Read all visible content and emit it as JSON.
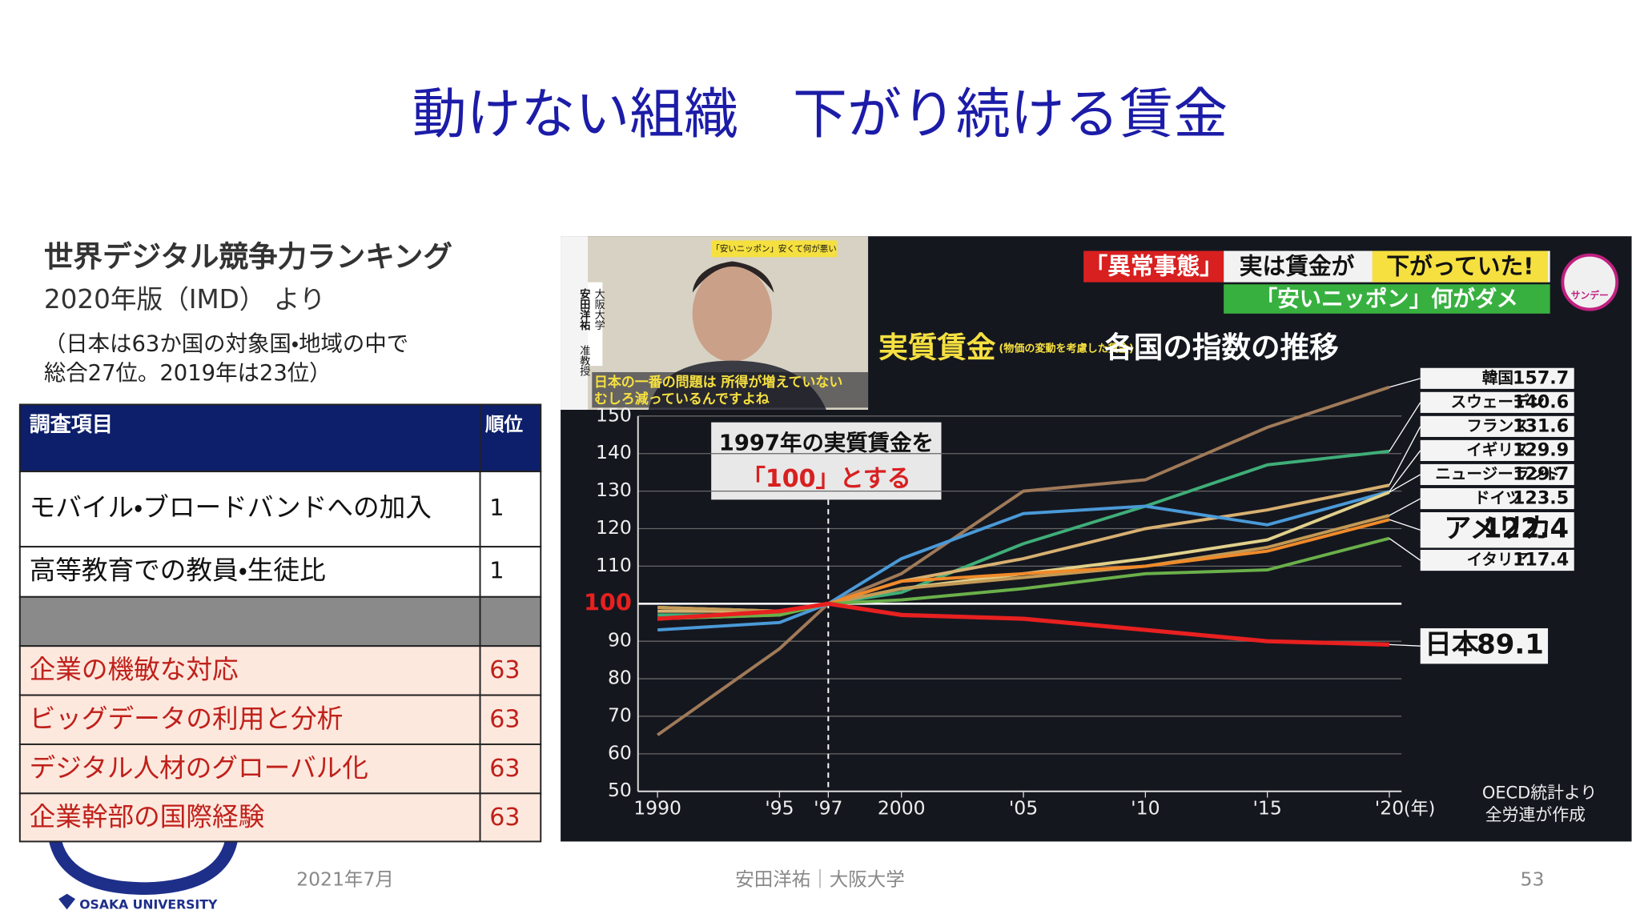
{
  "header": {
    "title": "動けない組織　下がり続ける賃金"
  },
  "ranking": {
    "heading": "世界デジタル競争力ランキング",
    "source": "2020年版（IMD） より",
    "note_lines": [
      "（日本は63か国の対象国・地域の中で",
      "総合27位。2019年は23位）"
    ],
    "table": {
      "columns": [
        "調査項目",
        "順位"
      ],
      "top_rows": [
        [
          "モバイル・ブロードバンドへの加入",
          1
        ],
        [
          "高等教育での教員・生徒比",
          1
        ]
      ],
      "bottom_rows": [
        [
          "企業の機敏な対応",
          63
        ],
        [
          "ビッグデータの利用と分析",
          63
        ],
        [
          "デジタル人材のグローバル化",
          63
        ],
        [
          "企業幹部の国際経験",
          63
        ]
      ]
    }
  },
  "inset": {
    "ticker": "「安いニッポン」安くて何が悪い",
    "name": "安田洋祐",
    "role": "准教授",
    "affiliation": "大阪大学",
    "caption": [
      "日本の一番の問題は 所得が増えていない",
      "むしろ減っているんですよね"
    ]
  },
  "chart_data": {
    "type": "line",
    "banner": [
      "「異常事態」",
      "実は賃金が",
      "下がっていた!"
    ],
    "sub_banner": "「安いニッポン」何がダメ",
    "logo": "サンデー",
    "title": "実質賃金",
    "title_note": "(物価の変動を考慮した賃金)",
    "title_suffix": "各国の指数の推移",
    "annotation": [
      "1997年の実質賃金を",
      "「100」とする"
    ],
    "source": [
      "OECD統計より",
      "全労連が作成"
    ],
    "x": [
      1990,
      1995,
      1997,
      2000,
      2005,
      2010,
      2015,
      2020
    ],
    "xlim": [
      1989.2,
      2020.5
    ],
    "xticks": [
      1990,
      {
        "value": 1995,
        "label": "'95"
      },
      {
        "value": 1997,
        "label": "'97"
      },
      2000,
      {
        "value": 2005,
        "label": "'05"
      },
      {
        "value": 2010,
        "label": "'10"
      },
      {
        "value": 2015,
        "label": "'15"
      },
      {
        "value": 2020,
        "label": "'20"
      }
    ],
    "x_unit": "(年)",
    "ylim": [
      50,
      150
    ],
    "yticks": [
      50,
      60,
      70,
      80,
      90,
      100,
      110,
      120,
      130,
      140,
      150
    ],
    "reference_x": 1997,
    "reference_y": 100,
    "grid": true,
    "series": [
      {
        "name": "韓国",
        "color": "#a07a58",
        "values": [
          65,
          88,
          100,
          108,
          130,
          133,
          147,
          157.7
        ]
      },
      {
        "name": "スウェーデン",
        "color": "#3fae78",
        "values": [
          97,
          97,
          100,
          103,
          116,
          126,
          137,
          140.6
        ]
      },
      {
        "name": "フランス",
        "color": "#d8b070",
        "values": [
          98,
          98,
          100,
          106,
          112,
          120,
          125,
          131.6
        ]
      },
      {
        "name": "イギリス",
        "color": "#4a9ad8",
        "values": [
          93,
          95,
          100,
          112,
          124,
          126,
          121,
          129.9
        ]
      },
      {
        "name": "ニュージーランド",
        "color": "#e0d08a",
        "values": [
          99,
          98,
          100,
          104,
          108,
          112,
          117,
          129.7
        ]
      },
      {
        "name": "ドイツ",
        "color": "#c39a55",
        "values": [
          99,
          98,
          100,
          104,
          107,
          110,
          115,
          123.5
        ]
      },
      {
        "name": "アメリカ",
        "color": "#f08a2a",
        "values": [
          96,
          97,
          100,
          106,
          108,
          110,
          114,
          122.4
        ]
      },
      {
        "name": "イタリア",
        "color": "#6ab04a",
        "values": [
          96,
          97,
          100,
          101,
          104,
          108,
          109,
          117.4
        ]
      },
      {
        "name": "日本",
        "color": "#e82020",
        "values": [
          96,
          98,
          100,
          97,
          96,
          93,
          90,
          89.1
        ]
      }
    ]
  },
  "footer": {
    "date": "2021年7月",
    "author": "安田洋祐｜大阪大学",
    "page": 53,
    "logo": "OSAKA UNIVERSITY"
  }
}
